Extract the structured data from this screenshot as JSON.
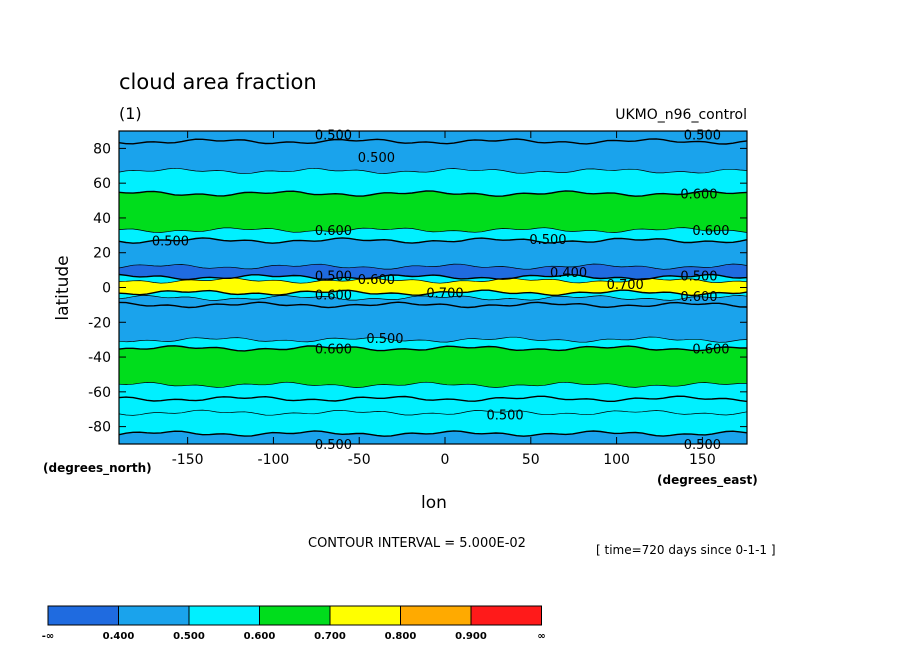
{
  "chart_data": {
    "type": "heatmap",
    "title": "cloud area fraction",
    "units": "(1)",
    "dataset": "UKMO_n96_control",
    "xlabel": "lon",
    "ylabel": "latitude",
    "x_units": "(degrees_east)",
    "y_units": "(degrees_north)",
    "xlim": [
      -190,
      176
    ],
    "ylim": [
      -90,
      90
    ],
    "x_ticks": [
      -150,
      -100,
      -50,
      0,
      50,
      100,
      150
    ],
    "y_ticks": [
      -80,
      -60,
      -40,
      -20,
      0,
      20,
      40,
      60,
      80
    ],
    "contour_interval": "CONTOUR INTERVAL = 5.000E-02",
    "time_label": "[ time=720 days since 0-1-1 ]",
    "colorbar": {
      "labels": [
        "-∞",
        "0.400",
        "0.500",
        "0.600",
        "0.700",
        "0.800",
        "0.900",
        "∞"
      ],
      "colors": [
        "#1f6be0",
        "#1aa3ec",
        "#00f0ff",
        "#00dd1c",
        "#ffff00",
        "#ffaa00",
        "#ff1a1a"
      ]
    },
    "zonal_bands": [
      {
        "lat_from": 90,
        "lat_to": 84,
        "value": 0.45
      },
      {
        "lat_from": 84,
        "lat_to": 67,
        "value": 0.45
      },
      {
        "lat_from": 67,
        "lat_to": 54,
        "value": 0.55
      },
      {
        "lat_from": 54,
        "lat_to": 33,
        "value": 0.65
      },
      {
        "lat_from": 33,
        "lat_to": 27,
        "value": 0.55
      },
      {
        "lat_from": 27,
        "lat_to": 12,
        "value": 0.45
      },
      {
        "lat_from": 12,
        "lat_to": 6,
        "value": 0.38
      },
      {
        "lat_from": 6,
        "lat_to": 4,
        "value": 0.55
      },
      {
        "lat_from": 4,
        "lat_to": -3,
        "value": 0.72
      },
      {
        "lat_from": -3,
        "lat_to": -6,
        "value": 0.55
      },
      {
        "lat_from": -6,
        "lat_to": -10,
        "value": 0.45
      },
      {
        "lat_from": -10,
        "lat_to": -30,
        "value": 0.45
      },
      {
        "lat_from": -30,
        "lat_to": -35,
        "value": 0.55
      },
      {
        "lat_from": -35,
        "lat_to": -56,
        "value": 0.65
      },
      {
        "lat_from": -56,
        "lat_to": -64,
        "value": 0.55
      },
      {
        "lat_from": -64,
        "lat_to": -72,
        "value": 0.55
      },
      {
        "lat_from": -72,
        "lat_to": -84,
        "value": 0.55
      },
      {
        "lat_from": -84,
        "lat_to": -90,
        "value": 0.45
      }
    ],
    "contour_labels": [
      {
        "text": "0.500",
        "lon": -65,
        "lat": 88
      },
      {
        "text": "0.500",
        "lon": 150,
        "lat": 88
      },
      {
        "text": "0.500",
        "lon": -40,
        "lat": 75
      },
      {
        "text": "0.600",
        "lon": 148,
        "lat": 54
      },
      {
        "text": "0.600",
        "lon": -65,
        "lat": 33
      },
      {
        "text": "0.600",
        "lon": 155,
        "lat": 33
      },
      {
        "text": "0.500",
        "lon": -160,
        "lat": 27
      },
      {
        "text": "0.500",
        "lon": 60,
        "lat": 28
      },
      {
        "text": "0.400",
        "lon": 72,
        "lat": 9
      },
      {
        "text": "0.500",
        "lon": -65,
        "lat": 7
      },
      {
        "text": "0.600",
        "lon": -40,
        "lat": 5
      },
      {
        "text": "0.500",
        "lon": 148,
        "lat": 7
      },
      {
        "text": "0.700",
        "lon": 105,
        "lat": 2
      },
      {
        "text": "0.700",
        "lon": 0,
        "lat": -3
      },
      {
        "text": "0.600",
        "lon": -65,
        "lat": -4
      },
      {
        "text": "0.600",
        "lon": 148,
        "lat": -5
      },
      {
        "text": "0.500",
        "lon": -35,
        "lat": -29
      },
      {
        "text": "0.600",
        "lon": -65,
        "lat": -35
      },
      {
        "text": "0.600",
        "lon": 155,
        "lat": -35
      },
      {
        "text": "0.500",
        "lon": 35,
        "lat": -73
      },
      {
        "text": "0.500",
        "lon": -65,
        "lat": -90
      },
      {
        "text": "0.500",
        "lon": 150,
        "lat": -90
      }
    ]
  }
}
